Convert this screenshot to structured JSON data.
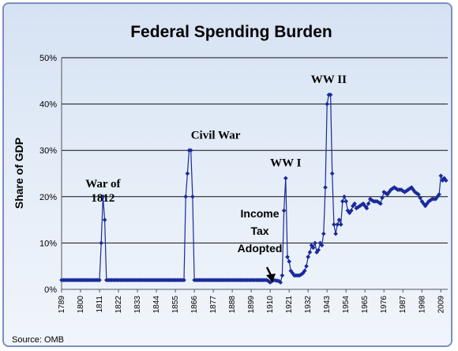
{
  "chart_data": {
    "type": "line",
    "title": "Federal Spending Burden",
    "ylabel": "Share of GDP",
    "xlabel": "",
    "ylim": [
      0,
      50
    ],
    "xlim": [
      1789,
      2013
    ],
    "grid": "horizontal",
    "legend": "none",
    "y_ticks": [
      "0%",
      "10%",
      "20%",
      "30%",
      "40%",
      "50%"
    ],
    "x_ticks": [
      "1789",
      "1800",
      "1811",
      "1822",
      "1833",
      "1844",
      "1855",
      "1866",
      "1877",
      "1888",
      "1899",
      "1910",
      "1921",
      "1932",
      "1943",
      "1954",
      "1965",
      "1976",
      "1987",
      "1998",
      "2009"
    ],
    "series": [
      {
        "color": "#1a2a9a",
        "points": [
          [
            1789,
            2
          ],
          [
            1811,
            2
          ],
          [
            1812,
            10
          ],
          [
            1813,
            20
          ],
          [
            1814,
            15
          ],
          [
            1815,
            2
          ],
          [
            1860,
            2
          ],
          [
            1861,
            20
          ],
          [
            1862,
            25
          ],
          [
            1863,
            30
          ],
          [
            1864,
            30
          ],
          [
            1865,
            20
          ],
          [
            1866,
            2
          ],
          [
            1900,
            2
          ],
          [
            1905,
            2
          ],
          [
            1908,
            2
          ],
          [
            1910,
            1.5
          ],
          [
            1912,
            2
          ],
          [
            1915,
            1.8
          ],
          [
            1916,
            1.5
          ],
          [
            1917,
            3
          ],
          [
            1918,
            17
          ],
          [
            1919,
            24
          ],
          [
            1920,
            7
          ],
          [
            1921,
            6
          ],
          [
            1922,
            4
          ],
          [
            1923,
            3.5
          ],
          [
            1924,
            3
          ],
          [
            1925,
            3
          ],
          [
            1926,
            3
          ],
          [
            1927,
            3
          ],
          [
            1928,
            3.2
          ],
          [
            1929,
            3.5
          ],
          [
            1930,
            4
          ],
          [
            1931,
            5
          ],
          [
            1932,
            7
          ],
          [
            1933,
            8
          ],
          [
            1934,
            9.5
          ],
          [
            1935,
            9
          ],
          [
            1936,
            10
          ],
          [
            1937,
            8
          ],
          [
            1938,
            8.5
          ],
          [
            1939,
            10
          ],
          [
            1940,
            9.5
          ],
          [
            1941,
            12
          ],
          [
            1942,
            22
          ],
          [
            1943,
            40
          ],
          [
            1944,
            42
          ],
          [
            1945,
            42
          ],
          [
            1946,
            25
          ],
          [
            1947,
            14
          ],
          [
            1948,
            12
          ],
          [
            1949,
            14
          ],
          [
            1950,
            15
          ],
          [
            1951,
            14
          ],
          [
            1952,
            19
          ],
          [
            1953,
            20
          ],
          [
            1954,
            19
          ],
          [
            1955,
            17
          ],
          [
            1956,
            16.5
          ],
          [
            1957,
            17
          ],
          [
            1958,
            18
          ],
          [
            1959,
            18.5
          ],
          [
            1960,
            17.5
          ],
          [
            1962,
            18
          ],
          [
            1964,
            18.5
          ],
          [
            1966,
            17.5
          ],
          [
            1968,
            19.5
          ],
          [
            1970,
            19
          ],
          [
            1972,
            19
          ],
          [
            1974,
            18.5
          ],
          [
            1976,
            21
          ],
          [
            1978,
            20.5
          ],
          [
            1980,
            21.5
          ],
          [
            1982,
            22
          ],
          [
            1984,
            21.5
          ],
          [
            1986,
            21.5
          ],
          [
            1988,
            21
          ],
          [
            1990,
            21.5
          ],
          [
            1992,
            22
          ],
          [
            1994,
            21
          ],
          [
            1996,
            20.5
          ],
          [
            1998,
            19
          ],
          [
            2000,
            18
          ],
          [
            2002,
            19
          ],
          [
            2004,
            19.5
          ],
          [
            2006,
            19.5
          ],
          [
            2008,
            20.5
          ],
          [
            2009,
            24.5
          ],
          [
            2010,
            23.5
          ],
          [
            2011,
            24
          ],
          [
            2012,
            23.5
          ]
        ]
      }
    ],
    "annotations": [
      {
        "text": [
          "War of",
          "1812"
        ],
        "x": 1813,
        "y": 22,
        "style": "serif",
        "align": "middle"
      },
      {
        "text": [
          "Civil War"
        ],
        "x": 1864,
        "y": 32.5,
        "style": "serif",
        "align": "start"
      },
      {
        "text": [
          "WW I"
        ],
        "x": 1919,
        "y": 26.5,
        "style": "serif",
        "align": "middle"
      },
      {
        "text": [
          "WW II"
        ],
        "x": 1944,
        "y": 44.5,
        "style": "serif",
        "align": "middle"
      },
      {
        "text": [
          "Income",
          "Tax",
          "Adopted"
        ],
        "x": 1904,
        "y": 15.5,
        "style": "sans",
        "align": "middle"
      }
    ],
    "source": "Source: OMB"
  }
}
